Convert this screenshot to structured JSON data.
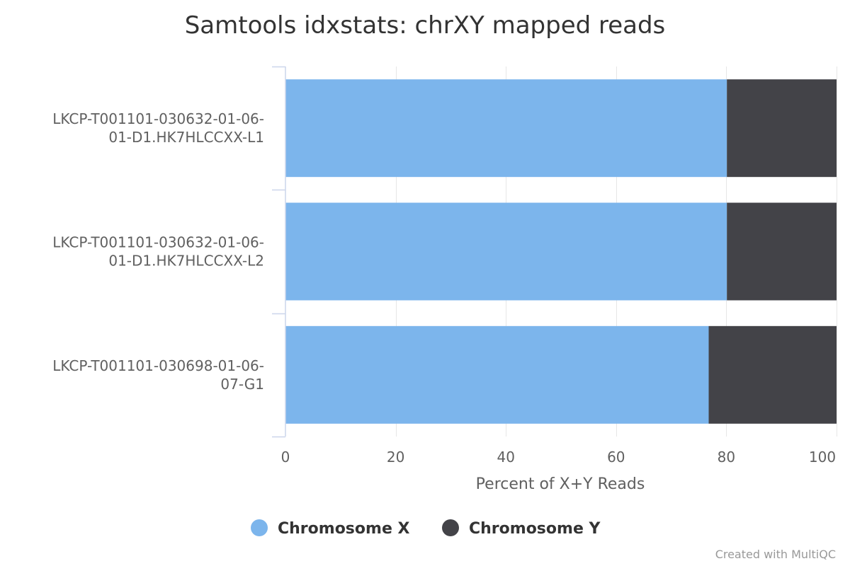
{
  "chart_data": {
    "type": "bar",
    "orientation": "horizontal",
    "stacking": "percent",
    "title": "Samtools idxstats: chrXY mapped reads",
    "categories": [
      [
        "LKCP-T001101-030632-01-06-",
        "01-D1.HK7HLCCXX-L1"
      ],
      [
        "LKCP-T001101-030632-01-06-",
        "01-D1.HK7HLCCXX-L2"
      ],
      [
        "LKCP-T001101-030698-01-06-",
        "07-G1"
      ]
    ],
    "series": [
      {
        "name": "Chromosome X",
        "color": "#7cb5ec",
        "values": [
          80.1,
          80.1,
          76.8
        ]
      },
      {
        "name": "Chromosome Y",
        "color": "#434348",
        "values": [
          19.9,
          19.9,
          23.2
        ]
      }
    ],
    "xlabel": "Percent of X+Y Reads",
    "xlim": [
      0,
      100
    ],
    "xticks": [
      0,
      20,
      40,
      60,
      80,
      100
    ],
    "grid": true,
    "legend_position": "bottom-center"
  },
  "credit": "Created with MultiQC"
}
